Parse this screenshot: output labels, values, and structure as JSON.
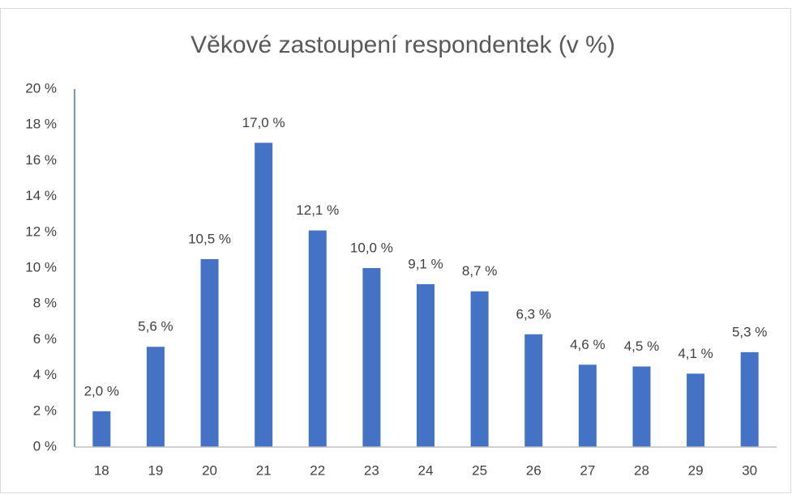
{
  "chart_data": {
    "type": "bar",
    "title": "Věkové zastoupení respondentek (v %)",
    "categories": [
      "18",
      "19",
      "20",
      "21",
      "22",
      "23",
      "24",
      "25",
      "26",
      "27",
      "28",
      "29",
      "30"
    ],
    "values": [
      2.0,
      5.6,
      10.5,
      17.0,
      12.1,
      10.0,
      9.1,
      8.7,
      6.3,
      4.6,
      4.5,
      4.1,
      5.3
    ],
    "value_labels": [
      "2,0 %",
      "5,6 %",
      "10,5 %",
      "17,0 %",
      "12,1 %",
      "10,0 %",
      "9,1 %",
      "8,7 %",
      "6,3 %",
      "4,6 %",
      "4,5 %",
      "4,1 %",
      "5,3 %"
    ],
    "color": "#4472c4",
    "ylim": [
      0,
      20
    ],
    "yticks": [
      {
        "value": 0,
        "label": "0 %"
      },
      {
        "value": 2,
        "label": "2 %"
      },
      {
        "value": 4,
        "label": "4 %"
      },
      {
        "value": 6,
        "label": "6 %"
      },
      {
        "value": 8,
        "label": "8 %"
      },
      {
        "value": 10,
        "label": "10 %"
      },
      {
        "value": 12,
        "label": "12 %"
      },
      {
        "value": 14,
        "label": "14 %"
      },
      {
        "value": 16,
        "label": "16 %"
      },
      {
        "value": 18,
        "label": "18 %"
      },
      {
        "value": 20,
        "label": "20 %"
      }
    ],
    "grid": false
  }
}
